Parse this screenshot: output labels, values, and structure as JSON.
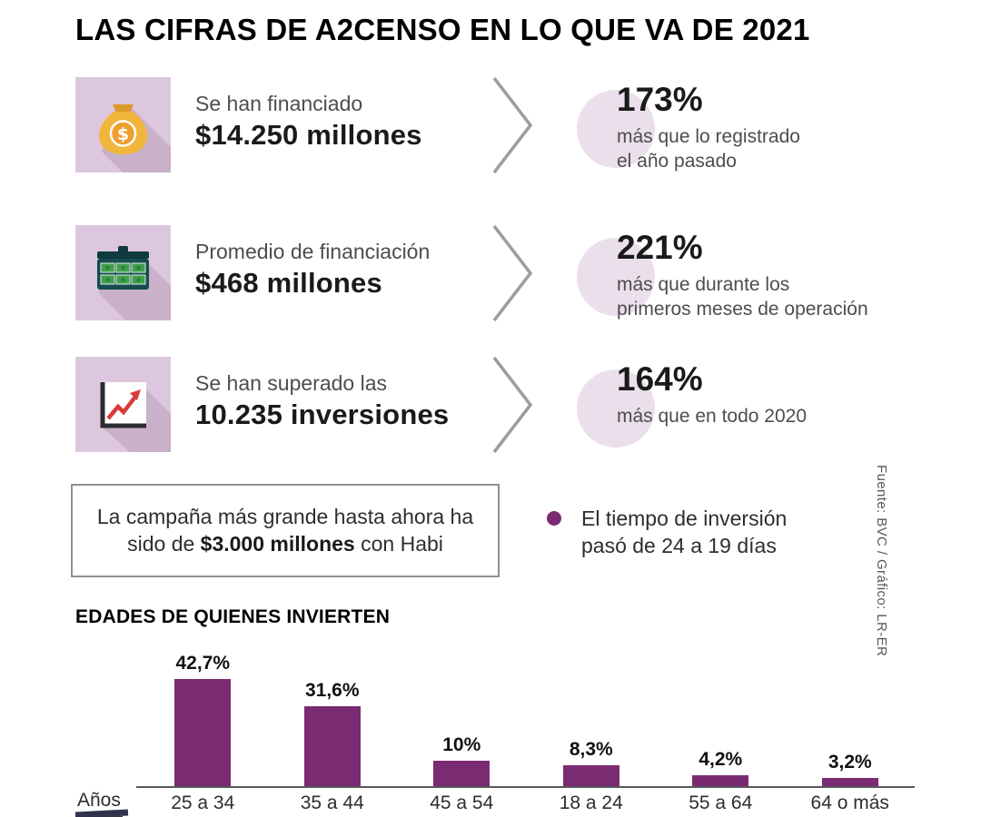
{
  "title": "LAS CIFRAS DE A2CENSO EN LO QUE VA DE 2021",
  "colors": {
    "bar_purple": "#7b2b72",
    "tile_purple": "#ddc7de",
    "circle_pink": "#ebdfec",
    "accent_purple": "#7b2b72"
  },
  "stats": [
    {
      "icon": "money-bag-icon",
      "label": "Se han financiado",
      "value": "$14.250 millones",
      "pct": "173%",
      "desc_line1": "más que lo registrado",
      "desc_line2": "el año pasado"
    },
    {
      "icon": "money-case-icon",
      "label": "Promedio de financiación",
      "value": "$468 millones",
      "pct": "221%",
      "desc_line1": "más que durante los",
      "desc_line2": "primeros meses de operación"
    },
    {
      "icon": "growth-chart-icon",
      "label": "Se han superado las",
      "value": "10.235 inversiones",
      "pct": "164%",
      "desc_line1": "más que en todo 2020",
      "desc_line2": ""
    }
  ],
  "highlight_box": {
    "text_prefix": "La campaña más grande hasta ahora ha sido de ",
    "text_bold": "$3.000 millones",
    "text_suffix": " con Habi"
  },
  "bullet_note": {
    "text": "El tiempo de inversión pasó de 24 a 19 días"
  },
  "source": "Fuente: BVC / Gráfico: LR-ER",
  "chart_data": {
    "type": "bar",
    "title": "EDADES DE QUIENES INVIERTEN",
    "xlabel": "Años",
    "ylabel": "",
    "categories": [
      "25 a 34",
      "35 a 44",
      "45 a 54",
      "18 a 24",
      "55 a 64",
      "64 o más"
    ],
    "values": [
      42.7,
      31.6,
      10,
      8.3,
      4.2,
      3.2
    ],
    "value_labels": [
      "42,7%",
      "31,6%",
      "10%",
      "8,3%",
      "4,2%",
      "3,2%"
    ],
    "bar_color": "#7b2b72",
    "ylim": [
      0,
      45
    ],
    "grid": false,
    "legend": "none"
  }
}
